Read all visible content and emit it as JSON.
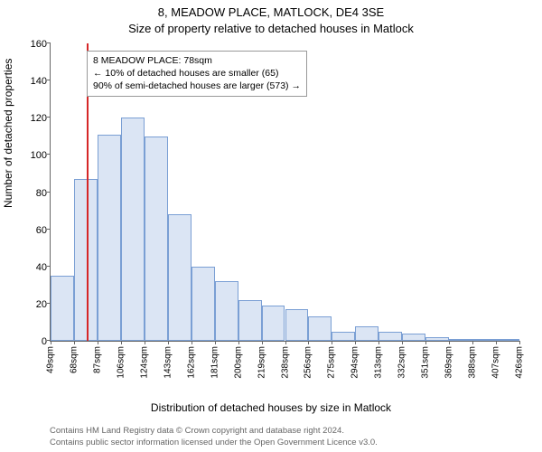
{
  "title_line1": "8, MEADOW PLACE, MATLOCK, DE4 3SE",
  "title_line2": "Size of property relative to detached houses in Matlock",
  "ylabel": "Number of detached properties",
  "xlabel": "Distribution of detached houses by size in Matlock",
  "footer_line1": "Contains HM Land Registry data © Crown copyright and database right 2024.",
  "footer_line2": "Contains public sector information licensed under the Open Government Licence v3.0.",
  "annotation": {
    "line1": "8 MEADOW PLACE: 78sqm",
    "line2": "← 10% of detached houses are smaller (65)",
    "line3": "90% of semi-detached houses are larger (573) →"
  },
  "chart": {
    "type": "histogram",
    "ylim": [
      0,
      160
    ],
    "ytick_step": 20,
    "x_start": 49,
    "x_bin_width_sqm": 18.85,
    "marker_value_sqm": 78,
    "marker_color": "#d62728",
    "bar_fill": "#dbe5f4",
    "bar_border": "#7a9fd4",
    "grid_color": "#666666",
    "background": "#ffffff",
    "x_tick_labels": [
      "49sqm",
      "68sqm",
      "87sqm",
      "106sqm",
      "124sqm",
      "143sqm",
      "162sqm",
      "181sqm",
      "200sqm",
      "219sqm",
      "238sqm",
      "256sqm",
      "275sqm",
      "294sqm",
      "313sqm",
      "332sqm",
      "351sqm",
      "369sqm",
      "388sqm",
      "407sqm",
      "426sqm"
    ],
    "bar_values": [
      35,
      87,
      111,
      120,
      110,
      68,
      40,
      32,
      22,
      19,
      17,
      13,
      5,
      8,
      5,
      4,
      2,
      1,
      1,
      1
    ]
  }
}
